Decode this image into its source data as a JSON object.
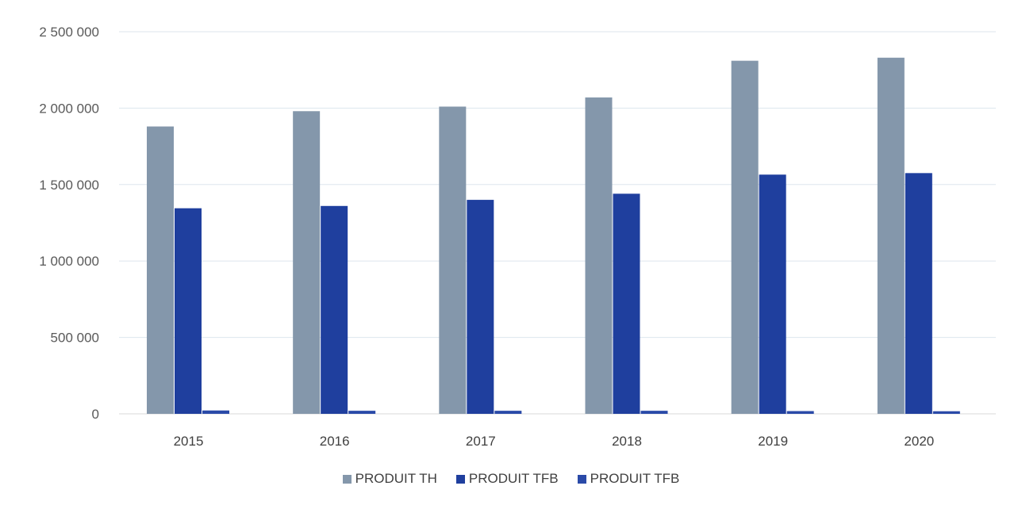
{
  "chart_data": {
    "type": "bar",
    "categories": [
      "2015",
      "2016",
      "2017",
      "2018",
      "2019",
      "2020"
    ],
    "series": [
      {
        "name": "PRODUIT TH",
        "color": "#8497ab",
        "values": [
          1880000,
          1980000,
          2010000,
          2070000,
          2310000,
          2330000
        ]
      },
      {
        "name": "PRODUIT TFB",
        "color": "#1f3f9e",
        "values": [
          1345000,
          1360000,
          1400000,
          1440000,
          1565000,
          1575000
        ]
      },
      {
        "name": "PRODUIT TFB",
        "color": "#2a4aa8",
        "values": [
          22000,
          20000,
          20000,
          20000,
          18000,
          17000
        ]
      }
    ],
    "y_ticks": [
      "0",
      "500 000",
      "1 000 000",
      "1 500 000",
      "2 000 000",
      "2 500 000"
    ],
    "ylim": [
      0,
      2500000
    ],
    "grid": true,
    "legend_position": "bottom",
    "title": "",
    "xlabel": "",
    "ylabel": ""
  }
}
